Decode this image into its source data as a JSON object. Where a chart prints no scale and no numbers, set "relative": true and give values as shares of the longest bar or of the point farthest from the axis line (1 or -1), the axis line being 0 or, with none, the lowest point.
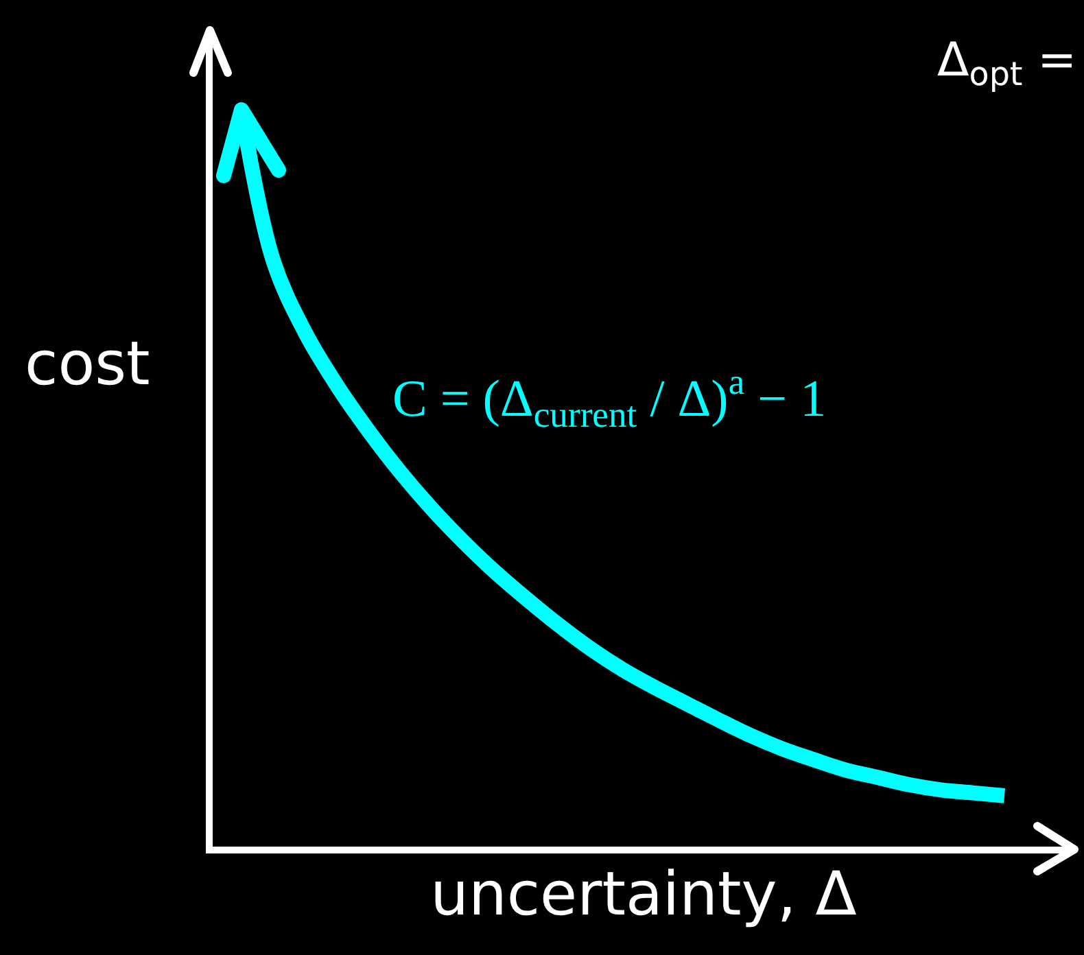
{
  "chart_data": {
    "type": "line",
    "relative": true,
    "categories": [
      null,
      null,
      null,
      null,
      null,
      null,
      null,
      null,
      null,
      null,
      null,
      null,
      null,
      null,
      null,
      null,
      null,
      null,
      null,
      null,
      null,
      null,
      null,
      null,
      null
    ],
    "series": [
      {
        "color": "#00ffff",
        "values": [
          1.0,
          0.795,
          0.698,
          0.626,
          0.564,
          0.508,
          0.458,
          0.413,
          0.372,
          0.335,
          0.3,
          0.268,
          0.24,
          0.216,
          0.194,
          0.172,
          0.151,
          0.133,
          0.118,
          0.104,
          0.094,
          0.084,
          0.077,
          0.073,
          0.069
        ]
      }
    ],
    "xlabel": "uncertainty, Δ",
    "ylabel": "cost",
    "annotations": [
      "C = (Δ$_{current}$ / Δ)$^{a}$ − 1",
      "Δ$_{opt}$ ="
    ]
  }
}
